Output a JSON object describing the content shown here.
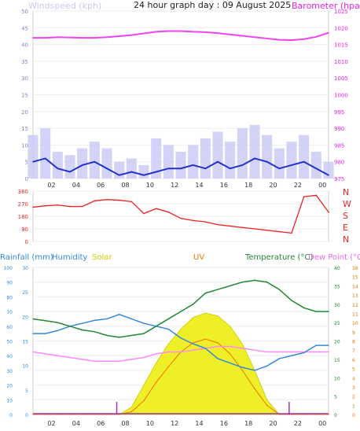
{
  "chart_data": [
    {
      "type": "line",
      "title": "24 hour graph day : 09 August 2025",
      "left_axis": {
        "label": "Windspeed (kph)",
        "ticks": [
          0,
          5,
          10,
          15,
          20,
          25,
          30,
          35,
          40,
          45,
          50
        ],
        "ylim": [
          0,
          50
        ]
      },
      "right_axis": {
        "label": "Barometer (hpa)",
        "ticks": [
          975,
          980,
          985,
          990,
          995,
          1000,
          1005,
          1010,
          1015,
          1020,
          1025
        ],
        "ylim": [
          975,
          1025
        ]
      },
      "x_ticks": [
        "02",
        "04",
        "06",
        "08",
        "10",
        "12",
        "14",
        "16",
        "18",
        "20",
        "22",
        "00"
      ],
      "x": [
        0,
        1,
        2,
        3,
        4,
        5,
        6,
        7,
        8,
        9,
        10,
        11,
        12,
        13,
        14,
        15,
        16,
        17,
        18,
        19,
        20,
        21,
        22,
        23,
        24
      ],
      "series": [
        {
          "key": "barometer",
          "axis": "right",
          "values": [
            1017,
            1017,
            1017.2,
            1017.1,
            1017,
            1017,
            1017.2,
            1017.5,
            1017.8,
            1018.3,
            1018.8,
            1019,
            1019,
            1018.8,
            1018.7,
            1018.4,
            1018,
            1017.6,
            1017.2,
            1016.8,
            1016.4,
            1016.3,
            1016.6,
            1017.3,
            1018.5
          ]
        },
        {
          "key": "wind_avg",
          "axis": "left",
          "values": [
            5,
            6,
            3,
            2,
            4,
            5,
            3,
            1,
            2,
            1,
            2,
            3,
            3,
            4,
            3,
            5,
            3,
            4,
            6,
            5,
            3,
            4,
            5,
            3,
            1
          ]
        },
        {
          "key": "wind_gust",
          "axis": "left",
          "values": [
            13,
            15,
            8,
            7,
            9,
            11,
            9,
            5,
            6,
            4,
            12,
            10,
            8,
            10,
            12,
            14,
            11,
            15,
            16,
            13,
            9,
            11,
            13,
            8,
            5
          ]
        }
      ],
      "colors": {
        "barometer": "#ee44ee",
        "wind_avg": "#2233cc",
        "wind_gust": "#c8c8f4",
        "axis_labels": "#c8c8f0",
        "baro_label": "#ee22ee"
      }
    },
    {
      "type": "line",
      "left_ticks": [
        0,
        90,
        180,
        270,
        360
      ],
      "ylim": [
        0,
        360
      ],
      "right_labels": [
        "N",
        "W",
        "S",
        "E",
        "N"
      ],
      "x": [
        0,
        1,
        2,
        3,
        4,
        5,
        6,
        7,
        8,
        9,
        10,
        11,
        12,
        13,
        14,
        15,
        16,
        17,
        18,
        19,
        20,
        21,
        22,
        23,
        24
      ],
      "series": [
        {
          "key": "wind_direction",
          "values": [
            245,
            255,
            260,
            250,
            250,
            290,
            300,
            295,
            285,
            200,
            235,
            210,
            165,
            150,
            140,
            120,
            110,
            100,
            90,
            80,
            70,
            60,
            320,
            330,
            210
          ]
        }
      ],
      "colors": {
        "line": "#ee2222",
        "labels": "#ee2222"
      }
    },
    {
      "type": "line",
      "legend": [
        {
          "label": "Rainfall (mm)",
          "color": "#3388dd"
        },
        {
          "label": "Humidity",
          "color": "#3388dd"
        },
        {
          "label": "Solar",
          "color": "#cccc00"
        },
        {
          "label": "UV",
          "color": "#ee7700"
        },
        {
          "label": "Temperature (°C)",
          "color": "#228833"
        },
        {
          "label": "Dew Point (°C)",
          "color": "#ee66ee"
        }
      ],
      "axes": {
        "humidity": {
          "ticks": [
            0,
            10,
            20,
            30,
            40,
            50,
            60,
            70,
            80,
            90,
            100
          ],
          "ylim": [
            0,
            100
          ]
        },
        "rainfall": {
          "ticks": [
            0,
            5,
            10,
            15,
            20,
            25,
            30
          ],
          "ylim": [
            0,
            30
          ]
        },
        "temperature": {
          "ticks": [
            0,
            5,
            10,
            15,
            20,
            25,
            30,
            35,
            40
          ],
          "ylim": [
            0,
            40
          ]
        },
        "uv": {
          "ticks": [
            0,
            1,
            2,
            3,
            4,
            5,
            6,
            7,
            8,
            9,
            10,
            11,
            12,
            13,
            14,
            15,
            16
          ],
          "ylim": [
            0,
            16
          ]
        }
      },
      "x_ticks": [
        "02",
        "04",
        "06",
        "08",
        "10",
        "12",
        "14",
        "16",
        "18",
        "20",
        "22",
        "00"
      ],
      "x": [
        0,
        1,
        2,
        3,
        4,
        5,
        6,
        7,
        8,
        9,
        10,
        11,
        12,
        13,
        14,
        15,
        16,
        17,
        18,
        19,
        20,
        21,
        22,
        23,
        24
      ],
      "series": [
        {
          "key": "temperature",
          "axis": "temperature",
          "values": [
            26,
            25.5,
            25,
            24,
            23,
            22.5,
            21.5,
            21,
            21.5,
            22,
            24,
            26,
            28,
            30,
            33,
            34,
            35,
            36,
            36.5,
            36,
            34,
            31,
            29,
            28,
            28
          ]
        },
        {
          "key": "humidity",
          "axis": "humidity",
          "values": [
            55,
            55,
            57,
            60,
            62,
            64,
            65,
            68,
            65,
            62,
            60,
            58,
            52,
            48,
            45,
            38,
            35,
            32,
            30,
            33,
            38,
            40,
            42,
            47,
            47
          ]
        },
        {
          "key": "dew_point",
          "axis": "temperature",
          "values": [
            17,
            16.5,
            16,
            15.5,
            15,
            14.5,
            14.5,
            14.5,
            15,
            15.5,
            16.5,
            17,
            17,
            17.5,
            18,
            18.5,
            18.5,
            18,
            17.5,
            17,
            17,
            17,
            17,
            17,
            17
          ]
        },
        {
          "key": "solar",
          "axis": "humidity",
          "values": [
            0,
            0,
            0,
            0,
            0,
            0,
            0,
            0,
            5,
            20,
            35,
            48,
            58,
            66,
            69,
            67,
            60,
            48,
            30,
            10,
            0,
            0,
            0,
            0,
            0
          ]
        },
        {
          "key": "uv",
          "axis": "uv",
          "values": [
            0,
            0,
            0,
            0,
            0,
            0,
            0,
            0,
            0.3,
            1.5,
            3.5,
            5.2,
            6.8,
            7.8,
            8.2,
            7.8,
            6.6,
            4.8,
            2.8,
            1,
            0,
            0,
            0,
            0,
            0
          ]
        }
      ],
      "colors": {
        "temperature": "#228833",
        "humidity": "#3388dd",
        "dew_point": "#ff88ff",
        "solar_fill": "#eeee11",
        "solar_edge": "#cccc00",
        "uv": "#ee7700",
        "rain_marker": "#9933cc"
      }
    }
  ]
}
